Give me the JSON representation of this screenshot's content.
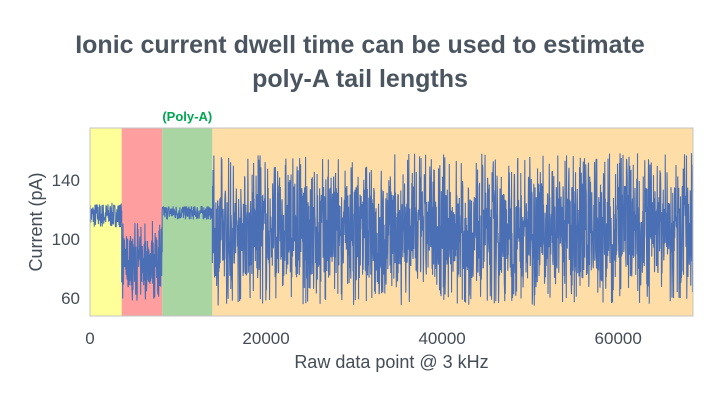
{
  "slide": {
    "title_line1": "Ionic current dwell time can be used to estimate",
    "title_line2": "poly-A tail lengths"
  },
  "chart_data": {
    "type": "line",
    "xlabel": "Raw data point @ 3 kHz",
    "ylabel": "Current (pA)",
    "xlim": [
      0,
      68500
    ],
    "ylim": [
      48,
      175
    ],
    "xticks": [
      0,
      20000,
      40000,
      60000
    ],
    "xtick_labels": [
      "0",
      "20000",
      "40000",
      "60000"
    ],
    "yticks": [
      60,
      100,
      140
    ],
    "ytick_labels": [
      "60",
      "100",
      "140"
    ],
    "grid": false,
    "region_label": "(Poly-A)",
    "regions": [
      {
        "x_start": 0,
        "x_end": 3600,
        "color": "#ffff99"
      },
      {
        "x_start": 3600,
        "x_end": 8200,
        "color": "#ff9e9e"
      },
      {
        "x_start": 8200,
        "x_end": 13900,
        "color": "#a8d5a2",
        "labeled": true
      },
      {
        "x_start": 13900,
        "x_end": 68500,
        "color": "#ffdda6"
      }
    ],
    "series": [
      {
        "color": "#4a6fb5",
        "segments": [
          {
            "x_start": 0,
            "x_end": 3600,
            "mean": 116,
            "min": 108,
            "max": 125
          },
          {
            "x_start": 3600,
            "x_end": 8200,
            "mean": 85,
            "min": 58,
            "max": 115
          },
          {
            "x_start": 8200,
            "x_end": 13900,
            "mean": 118,
            "min": 112,
            "max": 122
          },
          {
            "x_start": 13900,
            "x_end": 68500,
            "mean": 105,
            "min": 55,
            "max": 158
          }
        ]
      }
    ],
    "region_label_color": "#00a651",
    "text_color": "#444d56",
    "frame_color": "#c4c4c4"
  }
}
